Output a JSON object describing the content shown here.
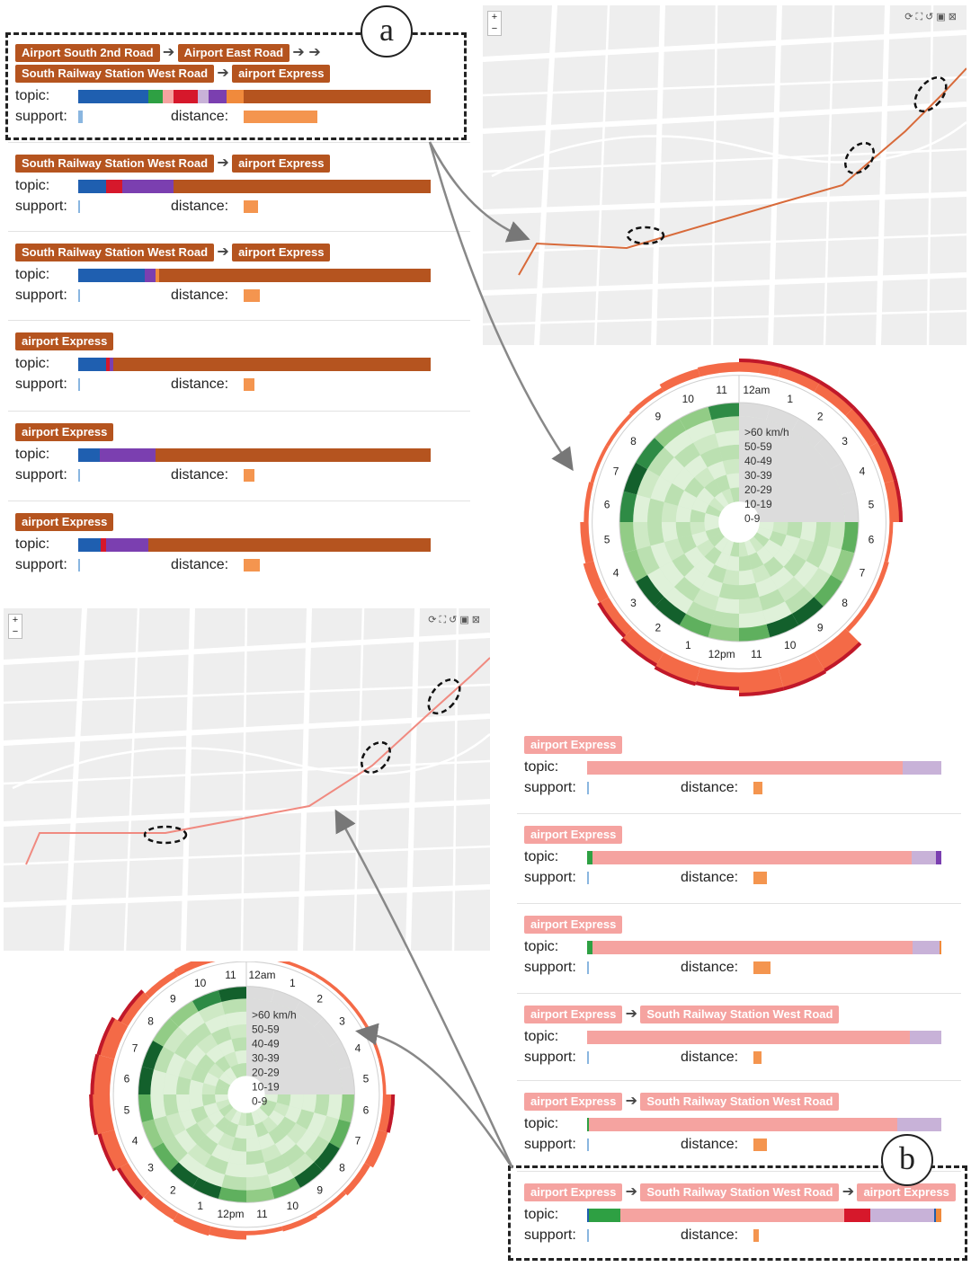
{
  "colors": {
    "brown": "#b5541f",
    "pink": "#f5a3a0",
    "blue": "#1f5fb0",
    "green": "#2ea043",
    "red": "#d6182b",
    "purple": "#7b3fb0",
    "lavender": "#c8b2d8",
    "orange": "#f08a3c",
    "map_bg": "#eeeeee",
    "route": "#d86a3a"
  },
  "labels": {
    "topic": "topic:",
    "support": "support:",
    "distance": "distance:"
  },
  "callouts": {
    "a": "a",
    "b": "b"
  },
  "map_controls": {
    "zoom_in": "+",
    "zoom_out": "−"
  },
  "left_cards": [
    {
      "chips": [
        [
          "Airport South 2nd Road",
          "Airport East Road",
          ""
        ],
        [
          "South Railway Station West Road",
          "airport Express"
        ]
      ],
      "topic": [
        [
          "blue",
          20
        ],
        [
          "green",
          4
        ],
        [
          "pink",
          3
        ],
        [
          "red",
          7
        ],
        [
          "lavender",
          3
        ],
        [
          "purple",
          5
        ],
        [
          "orange",
          5
        ],
        [
          "brown",
          53
        ]
      ],
      "support": 0.012,
      "distance": 0.21,
      "highlighted": true
    },
    {
      "chips": [
        [
          "South Railway Station West Road",
          "airport Express"
        ]
      ],
      "topic": [
        [
          "blue",
          8
        ],
        [
          "red",
          4.5
        ],
        [
          "purple",
          14.5
        ],
        [
          "brown",
          73
        ]
      ],
      "support": 0.005,
      "distance": 0.04
    },
    {
      "chips": [
        [
          "South Railway Station West Road",
          "airport Express"
        ]
      ],
      "topic": [
        [
          "blue",
          19
        ],
        [
          "purple",
          3
        ],
        [
          "orange",
          1
        ],
        [
          "brown",
          77
        ]
      ],
      "support": 0.005,
      "distance": 0.045
    },
    {
      "chips": [
        [
          "airport Express"
        ]
      ],
      "topic": [
        [
          "blue",
          8
        ],
        [
          "red",
          1
        ],
        [
          "purple",
          1
        ],
        [
          "brown",
          90
        ]
      ],
      "support": 0.004,
      "distance": 0.03
    },
    {
      "chips": [
        [
          "airport Express"
        ]
      ],
      "topic": [
        [
          "blue",
          6
        ],
        [
          "purple",
          16
        ],
        [
          "brown",
          78
        ]
      ],
      "support": 0.004,
      "distance": 0.03
    },
    {
      "chips": [
        [
          "airport Express"
        ]
      ],
      "topic": [
        [
          "blue",
          6.5
        ],
        [
          "red",
          1.5
        ],
        [
          "purple",
          12
        ],
        [
          "brown",
          80
        ]
      ],
      "support": 0.004,
      "distance": 0.045
    }
  ],
  "right_cards": [
    {
      "chips": [
        [
          "airport Express"
        ]
      ],
      "topic": [
        [
          "pink",
          89
        ],
        [
          "lavender",
          11
        ]
      ],
      "support": 0.004,
      "distance": 0.025
    },
    {
      "chips": [
        [
          "airport Express"
        ]
      ],
      "topic": [
        [
          "green",
          1.5
        ],
        [
          "pink",
          90
        ],
        [
          "lavender",
          7
        ],
        [
          "purple",
          1.5
        ]
      ],
      "support": 0.004,
      "distance": 0.037
    },
    {
      "chips": [
        [
          "airport Express"
        ]
      ],
      "topic": [
        [
          "green",
          1.5
        ],
        [
          "pink",
          90.5
        ],
        [
          "lavender",
          7.5
        ],
        [
          "orange",
          0.5
        ]
      ],
      "support": 0.004,
      "distance": 0.048
    },
    {
      "chips": [
        [
          "airport Express",
          "South Railway Station West Road"
        ]
      ],
      "topic": [
        [
          "pink",
          91
        ],
        [
          "lavender",
          9
        ]
      ],
      "support": 0.004,
      "distance": 0.022
    },
    {
      "chips": [
        [
          "airport Express",
          "South Railway Station West Road"
        ]
      ],
      "topic": [
        [
          "green",
          0.5
        ],
        [
          "pink",
          87
        ],
        [
          "lavender",
          12.5
        ]
      ],
      "support": 0.004,
      "distance": 0.037
    },
    {
      "chips": [
        [
          "airport Express",
          "South Railway Station West Road",
          "airport Express"
        ]
      ],
      "topic": [
        [
          "blue",
          0.5
        ],
        [
          "green",
          9
        ],
        [
          "pink",
          63
        ],
        [
          "red",
          7.5
        ],
        [
          "lavender",
          18
        ],
        [
          "blue",
          0.5
        ],
        [
          "orange",
          1.5
        ]
      ],
      "support": 0.004,
      "distance": 0.015,
      "highlighted": true
    }
  ],
  "radial": {
    "legend": [
      ">60 km/h",
      "50-59",
      "40-49",
      "30-39",
      "20-29",
      "10-19",
      "0-9"
    ],
    "hours_am": [
      "12am",
      "1",
      "2",
      "3",
      "4",
      "5",
      "6",
      "7",
      "8",
      "9",
      "10",
      "11"
    ],
    "hours_pm": [
      "12pm",
      "1",
      "2",
      "3",
      "4",
      "5",
      "6",
      "7",
      "8",
      "9",
      "10",
      "11"
    ],
    "top_outer_am": [
      0.55,
      0.55,
      0.55,
      0.55,
      0.55,
      0.55,
      0.15,
      0.2,
      0.2,
      0.95,
      1.0,
      1.0
    ],
    "top_outer_pm": [
      0.75,
      0.8,
      0.7,
      0.55,
      0.45,
      0.35,
      0.2,
      0.15,
      0.15,
      0.2,
      0.35,
      0.4
    ],
    "bottom_outer_am": [
      0.15,
      0.15,
      0.15,
      0.15,
      0.15,
      0.15,
      0.55,
      0.45,
      0.3,
      0.2,
      0.25,
      0.2
    ],
    "bottom_outer_pm": [
      0.4,
      0.45,
      0.4,
      0.6,
      0.8,
      0.95,
      0.9,
      0.85,
      0.55,
      0.3,
      0.35,
      0.2
    ]
  }
}
